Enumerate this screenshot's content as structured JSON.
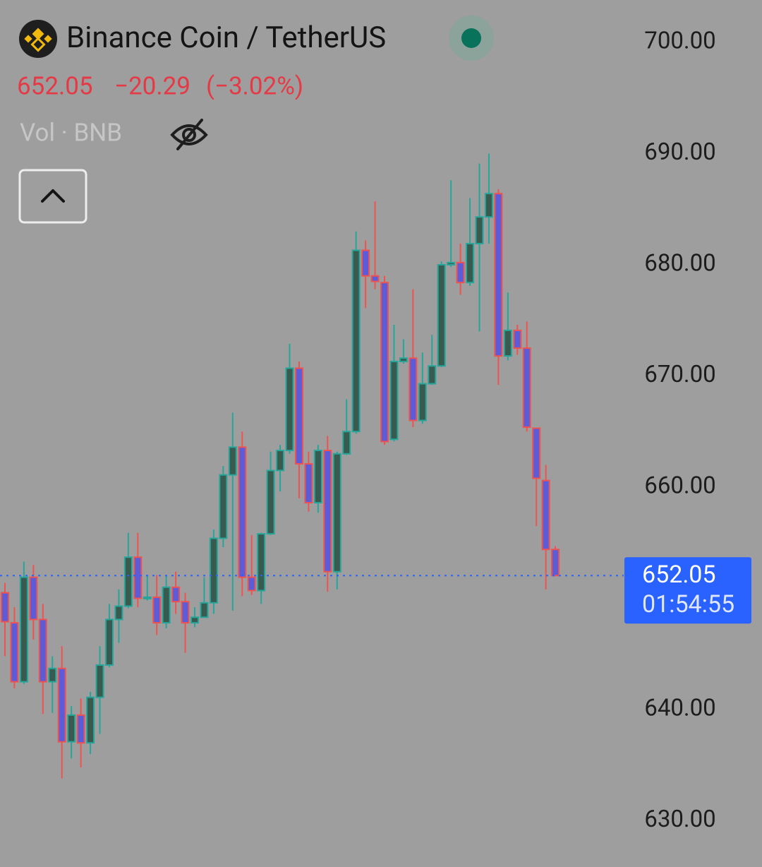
{
  "chart_data": {
    "type": "candlestick",
    "title": "Binance Coin / TetherUS",
    "change": {
      "value": -20.29,
      "label": "−20.29"
    },
    "change_percent": {
      "value": -3.02,
      "label": "(−3.02%)"
    },
    "volume_label": "Vol · BNB",
    "last_price": 652.05,
    "countdown": "01:54:55",
    "open": [
      650.5,
      647.8,
      642.5,
      651.9,
      648.1,
      642.5,
      643.7,
      637.1,
      639.5,
      637.0,
      641.1,
      644.0,
      648.1,
      649.3,
      653.7,
      650.0,
      650.1,
      647.8,
      651.0,
      649.7,
      647.8,
      648.3,
      649.6,
      655.4,
      661.1,
      663.6,
      651.9,
      650.7,
      655.8,
      661.5,
      663.3,
      670.7,
      662.1,
      658.6,
      663.3,
      652.4,
      663.0,
      665.0,
      681.3,
      679.0,
      678.4,
      664.3,
      671.3,
      671.6,
      666.0,
      669.3,
      670.9,
      680.0,
      680.2,
      678.4,
      681.9,
      684.3,
      686.4,
      671.8,
      674.1,
      672.5,
      665.3,
      660.6,
      654.4
    ],
    "high": [
      651.4,
      649.2,
      653.3,
      653.0,
      649.5,
      644.8,
      645.7,
      640.3,
      641.0,
      641.6,
      645.7,
      649.5,
      650.8,
      655.9,
      655.9,
      652.1,
      652.1,
      652.1,
      652.4,
      650.5,
      649.2,
      651.9,
      656.2,
      661.9,
      666.7,
      665.0,
      655.7,
      655.9,
      663.2,
      663.8,
      672.9,
      671.3,
      663.2,
      663.8,
      664.6,
      663.2,
      667.9,
      683.0,
      682.2,
      685.7,
      679.0,
      674.6,
      673.3,
      677.8,
      672.1,
      673.7,
      680.3,
      687.6,
      681.9,
      686.0,
      689.1,
      690.0,
      686.8,
      677.5,
      674.6,
      674.9,
      665.3,
      662.0,
      654.7
    ],
    "low": [
      644.8,
      641.9,
      642.3,
      646.3,
      639.6,
      639.7,
      633.8,
      635.6,
      634.8,
      636.0,
      637.8,
      643.8,
      646.0,
      649.1,
      649.2,
      649.8,
      646.7,
      647.3,
      648.6,
      645.1,
      647.4,
      648.4,
      648.6,
      654.6,
      648.9,
      650.2,
      650.3,
      649.5,
      655.7,
      659.6,
      663.0,
      659.0,
      657.8,
      657.7,
      650.6,
      650.8,
      662.9,
      664.8,
      676.1,
      677.8,
      663.8,
      664.1,
      671.1,
      665.4,
      665.7,
      669.2,
      670.8,
      679.8,
      677.3,
      678.1,
      674.0,
      681.9,
      669.2,
      671.4,
      671.9,
      665.0,
      656.5,
      650.8,
      652.05
    ],
    "close": [
      647.9,
      642.5,
      651.9,
      648.1,
      642.5,
      643.7,
      637.1,
      639.5,
      637.0,
      641.1,
      644.0,
      648.1,
      649.3,
      653.7,
      650.0,
      650.1,
      647.8,
      651.0,
      649.7,
      647.8,
      648.3,
      649.6,
      655.4,
      661.1,
      663.6,
      651.9,
      650.7,
      655.8,
      661.5,
      663.3,
      670.7,
      662.1,
      658.6,
      663.3,
      652.4,
      663.0,
      665.0,
      681.3,
      679.0,
      678.5,
      664.1,
      671.3,
      671.6,
      666.0,
      669.3,
      670.9,
      680.0,
      680.2,
      678.4,
      681.9,
      684.3,
      686.4,
      671.8,
      674.1,
      672.5,
      665.4,
      660.8,
      654.4,
      652.05
    ],
    "ylim": [
      625.84,
      703.81
    ],
    "yticks": [
      {
        "value": 630,
        "label": "630.00"
      },
      {
        "value": 640,
        "label": "640.00"
      },
      {
        "value": 660,
        "label": "660.00"
      },
      {
        "value": 670,
        "label": "670.00"
      },
      {
        "value": 680,
        "label": "680.00"
      },
      {
        "value": 690,
        "label": "690.00"
      },
      {
        "value": 700,
        "label": "700.00"
      }
    ],
    "up_color": "#26a69a",
    "down_color": "#ef5350",
    "up_body": "#385a4f",
    "down_body": "#5c5cd8",
    "price_line_color": "#2962ff",
    "loss_color": "#e53945"
  }
}
